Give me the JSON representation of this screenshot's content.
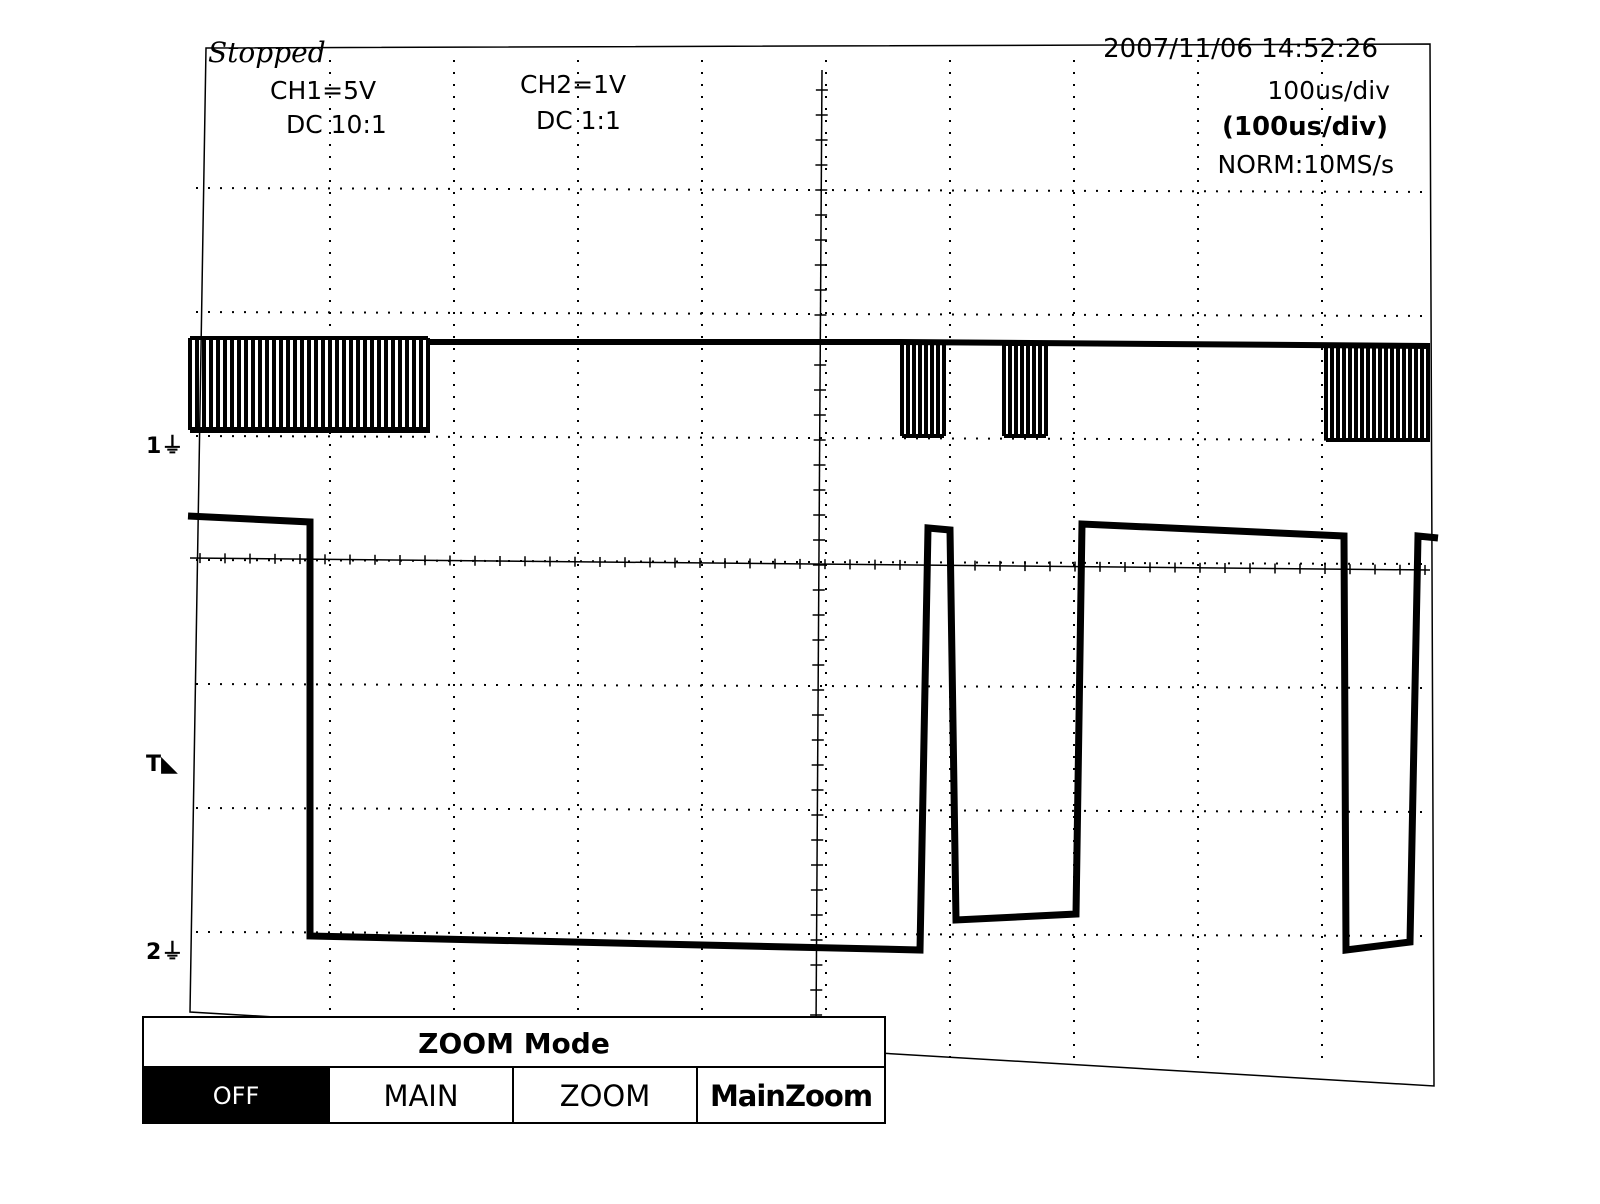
{
  "header": {
    "status": "Stopped",
    "datetime": "2007/11/06  14:52:26"
  },
  "channels": [
    {
      "scale": "CH1=5V",
      "coupling": "DC  10:1",
      "marker": "1"
    },
    {
      "scale": "CH2=1V",
      "coupling": "DC  1:1",
      "marker": "2"
    }
  ],
  "timebase": {
    "main": "100us/div",
    "zoom": "(100us/div)",
    "acquisition": "NORM:10MS/s"
  },
  "trigger_marker": "T",
  "zoom_menu": {
    "title": "ZOOM  Mode",
    "options": [
      "OFF",
      "MAIN",
      "ZOOM",
      "MainZoom"
    ],
    "selected": "OFF"
  },
  "colors": {
    "trace": "#000000",
    "background": "#ffffff"
  }
}
